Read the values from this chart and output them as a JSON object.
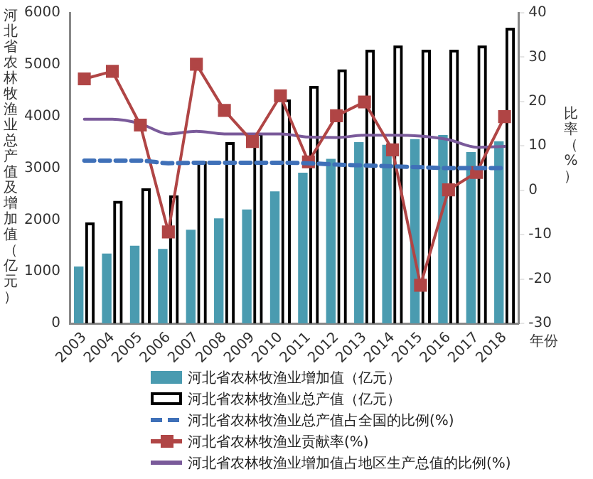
{
  "chart_data": {
    "type": "bar",
    "ylabel": "河北省农林牧渔业总产值及增加值（亿元）",
    "y2label": "比率（%）",
    "xlabel": "年份",
    "categories": [
      "2003",
      "2004",
      "2005",
      "2006",
      "2007",
      "2008",
      "2009",
      "2010",
      "2011",
      "2012",
      "2013",
      "2014",
      "2015",
      "2016",
      "2017",
      "2018"
    ],
    "series": [
      {
        "name": "河北省农林牧渔业增加值（亿元）",
        "color": "#4a9bb0",
        "values": [
          1100,
          1350,
          1500,
          1440,
          1810,
          2030,
          2200,
          2550,
          2910,
          3180,
          3500,
          3450,
          3560,
          3640,
          3310,
          3520
        ]
      },
      {
        "name": "河北省农林牧渔业总产值（亿元）",
        "color": "#000000",
        "values": [
          1950,
          2370,
          2610,
          2470,
          3130,
          3500,
          3680,
          4330,
          4590,
          4910,
          5290,
          5370,
          5290,
          5290,
          5370,
          5710
        ]
      },
      {
        "name": "河北省农林牧渔业总产值占全国的比例(%)",
        "type": "line",
        "axis": "y2",
        "color": "#3f70b8",
        "line_style": "dashed",
        "marker": "none",
        "values": [
          6.7,
          6.7,
          6.7,
          6.1,
          6.2,
          6.2,
          6.2,
          6.2,
          6.1,
          5.8,
          5.6,
          5.4,
          5.2,
          5.0,
          5.0,
          5.0
        ]
      },
      {
        "name": "河北省农林牧渔业贡献率(%)",
        "type": "line",
        "axis": "y2",
        "color": "#b04545",
        "line_style": "solid",
        "marker": "square",
        "values": [
          25.1,
          26.8,
          14.7,
          -9.4,
          28.4,
          18.0,
          11.0,
          21.3,
          6.4,
          16.8,
          19.9,
          9.1,
          -21.4,
          0.1,
          4.0,
          16.6
        ]
      },
      {
        "name": "河北省农林牧渔业增加值占地区生产总值的比例(%)",
        "type": "line",
        "axis": "y2",
        "color": "#7a5a9a",
        "line_style": "solid",
        "marker": "none",
        "values": [
          16.0,
          16.0,
          15.0,
          12.7,
          13.3,
          12.7,
          12.7,
          12.7,
          12.0,
          11.9,
          12.4,
          12.4,
          12.2,
          11.4,
          9.7,
          9.9
        ]
      }
    ],
    "ylim": [
      0,
      6000
    ],
    "yticks": [
      0,
      1000,
      2000,
      3000,
      4000,
      5000,
      6000
    ],
    "y2lim": [
      -30,
      40
    ],
    "y2ticks": [
      -30,
      -20,
      -10,
      0,
      10,
      20,
      30,
      40
    ],
    "grid": false,
    "legend": "bottom"
  }
}
